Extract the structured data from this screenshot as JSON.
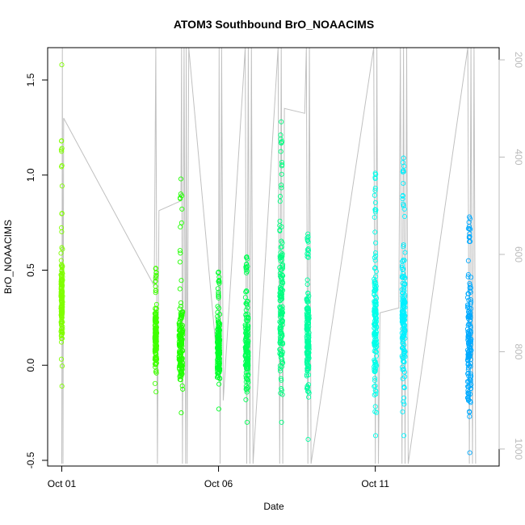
{
  "chart_data": {
    "type": "scatter",
    "title": "ATOM3 Southbound BrO_NOAACIMS",
    "xlabel": "Date",
    "ylabel": "BrO_NOAACIMS",
    "x_ticks": [
      "Oct 01",
      "Oct 06",
      "Oct 11"
    ],
    "x_tick_values": [
      1.0,
      6.0,
      11.0
    ],
    "xlim": [
      0.55,
      14.95
    ],
    "ylim": [
      -0.53,
      1.67
    ],
    "y_ticks": [
      -0.5,
      0.0,
      0.5,
      1.0,
      1.5
    ],
    "y_tick_labels": [
      "-0.5",
      "0.0",
      "0.5",
      "1.0",
      "1.5"
    ],
    "right_axis": {
      "lim": [
        1035,
        175
      ],
      "ticks": [
        200,
        400,
        600,
        800,
        1000
      ],
      "tick_labels": [
        "200",
        "400",
        "600",
        "800",
        "1000"
      ],
      "line_color": "#bbbbbb"
    },
    "marker": "open-circle",
    "line_color": "#c0c0c0",
    "clusters": [
      {
        "x": 1.0,
        "width": 0.05,
        "core": [
          -0.05,
          0.7
        ],
        "min": -0.11,
        "max": 1.58,
        "color": "#80ff00"
      },
      {
        "x": 4.0,
        "width": 0.06,
        "core": [
          -0.1,
          0.38
        ],
        "min": -0.14,
        "max": 0.51,
        "color": "#40ff00"
      },
      {
        "x": 4.8,
        "width": 0.12,
        "core": [
          -0.2,
          0.4
        ],
        "min": -0.25,
        "max": 0.98,
        "color": "#20ff00"
      },
      {
        "x": 6.0,
        "width": 0.08,
        "core": [
          -0.2,
          0.35
        ],
        "min": -0.23,
        "max": 0.49,
        "color": "#00ff2a"
      },
      {
        "x": 6.9,
        "width": 0.1,
        "core": [
          -0.26,
          0.45
        ],
        "min": -0.3,
        "max": 0.57,
        "color": "#00ff55"
      },
      {
        "x": 8.0,
        "width": 0.1,
        "core": [
          -0.25,
          0.9
        ],
        "min": -0.3,
        "max": 1.28,
        "color": "#00ff80"
      },
      {
        "x": 8.85,
        "width": 0.08,
        "core": [
          -0.28,
          0.55
        ],
        "min": -0.39,
        "max": 0.69,
        "color": "#00ffa0"
      },
      {
        "x": 11.0,
        "width": 0.08,
        "core": [
          -0.33,
          0.75
        ],
        "min": -0.37,
        "max": 1.01,
        "color": "#00ffea"
      },
      {
        "x": 11.9,
        "width": 0.1,
        "core": [
          -0.33,
          0.8
        ],
        "min": -0.37,
        "max": 1.09,
        "color": "#00f0ff"
      },
      {
        "x": 14.0,
        "width": 0.12,
        "core": [
          -0.38,
          0.65
        ],
        "min": -0.46,
        "max": 0.78,
        "color": "#00aaff"
      }
    ],
    "altitude_line": [
      [
        1.0,
        1030
      ],
      [
        1.02,
        175
      ],
      [
        1.04,
        1030
      ],
      [
        1.06,
        320
      ],
      [
        3.95,
        665
      ],
      [
        4.0,
        175
      ],
      [
        4.05,
        1030
      ],
      [
        4.1,
        510
      ],
      [
        4.8,
        490
      ],
      [
        4.82,
        175
      ],
      [
        4.85,
        1030
      ],
      [
        4.9,
        175
      ],
      [
        4.95,
        1030
      ],
      [
        4.97,
        175
      ],
      [
        5.0,
        1030
      ],
      [
        5.05,
        175
      ],
      [
        5.9,
        780
      ],
      [
        6.0,
        780
      ],
      [
        6.02,
        175
      ],
      [
        6.05,
        1030
      ],
      [
        6.1,
        175
      ],
      [
        6.15,
        900
      ],
      [
        6.8,
        230
      ],
      [
        6.85,
        175
      ],
      [
        6.9,
        1030
      ],
      [
        6.95,
        175
      ],
      [
        7.0,
        1030
      ],
      [
        7.05,
        175
      ],
      [
        7.1,
        1030
      ],
      [
        7.9,
        175
      ],
      [
        7.95,
        1030
      ],
      [
        8.0,
        175
      ],
      [
        8.05,
        1030
      ],
      [
        8.1,
        300
      ],
      [
        8.75,
        310
      ],
      [
        8.8,
        175
      ],
      [
        8.85,
        1030
      ],
      [
        8.9,
        175
      ],
      [
        8.95,
        1030
      ],
      [
        10.95,
        175
      ],
      [
        11.0,
        1030
      ],
      [
        11.05,
        175
      ],
      [
        11.1,
        1030
      ],
      [
        11.15,
        720
      ],
      [
        11.75,
        710
      ],
      [
        11.8,
        175
      ],
      [
        11.85,
        1030
      ],
      [
        11.9,
        175
      ],
      [
        11.95,
        1030
      ],
      [
        12.0,
        175
      ],
      [
        12.05,
        1030
      ],
      [
        13.95,
        175
      ],
      [
        14.0,
        1030
      ],
      [
        14.05,
        175
      ],
      [
        14.1,
        1030
      ],
      [
        14.15,
        175
      ],
      [
        14.2,
        1030
      ]
    ]
  }
}
